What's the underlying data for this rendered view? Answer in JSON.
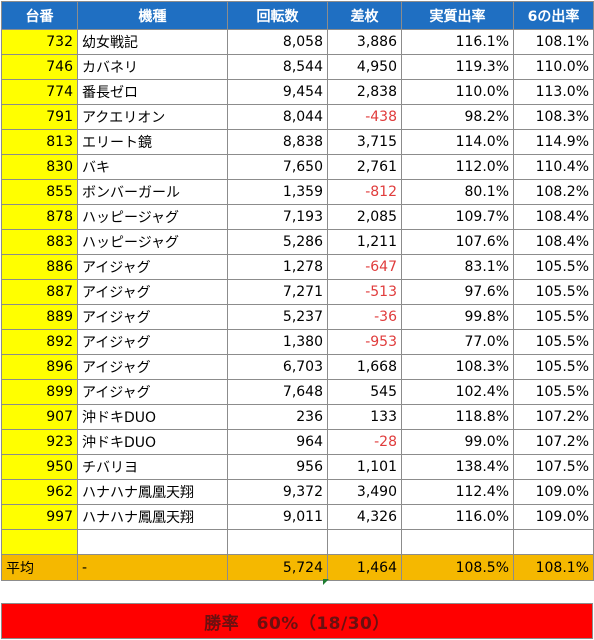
{
  "headers": [
    "台番",
    "機種",
    "回転数",
    "差枚",
    "実質出率",
    "6の出率"
  ],
  "rows": [
    {
      "id": "732",
      "name": "幼女戦記",
      "spins": "8,058",
      "diff": "3,886",
      "rate": "116.1%",
      "rate6": "108.1%",
      "neg": false
    },
    {
      "id": "746",
      "name": "カバネリ",
      "spins": "8,544",
      "diff": "4,950",
      "rate": "119.3%",
      "rate6": "110.0%",
      "neg": false
    },
    {
      "id": "774",
      "name": "番長ゼロ",
      "spins": "9,454",
      "diff": "2,838",
      "rate": "110.0%",
      "rate6": "113.0%",
      "neg": false
    },
    {
      "id": "791",
      "name": "アクエリオン",
      "spins": "8,044",
      "diff": "-438",
      "rate": "98.2%",
      "rate6": "108.3%",
      "neg": true
    },
    {
      "id": "813",
      "name": "エリート鏡",
      "spins": "8,838",
      "diff": "3,715",
      "rate": "114.0%",
      "rate6": "114.9%",
      "neg": false
    },
    {
      "id": "830",
      "name": "バキ",
      "spins": "7,650",
      "diff": "2,761",
      "rate": "112.0%",
      "rate6": "110.4%",
      "neg": false
    },
    {
      "id": "855",
      "name": "ボンバーガール",
      "spins": "1,359",
      "diff": "-812",
      "rate": "80.1%",
      "rate6": "108.2%",
      "neg": true
    },
    {
      "id": "878",
      "name": "ハッピージャグ",
      "spins": "7,193",
      "diff": "2,085",
      "rate": "109.7%",
      "rate6": "108.4%",
      "neg": false
    },
    {
      "id": "883",
      "name": "ハッピージャグ",
      "spins": "5,286",
      "diff": "1,211",
      "rate": "107.6%",
      "rate6": "108.4%",
      "neg": false
    },
    {
      "id": "886",
      "name": "アイジャグ",
      "spins": "1,278",
      "diff": "-647",
      "rate": "83.1%",
      "rate6": "105.5%",
      "neg": true
    },
    {
      "id": "887",
      "name": "アイジャグ",
      "spins": "7,271",
      "diff": "-513",
      "rate": "97.6%",
      "rate6": "105.5%",
      "neg": true
    },
    {
      "id": "889",
      "name": "アイジャグ",
      "spins": "5,237",
      "diff": "-36",
      "rate": "99.8%",
      "rate6": "105.5%",
      "neg": true
    },
    {
      "id": "892",
      "name": "アイジャグ",
      "spins": "1,380",
      "diff": "-953",
      "rate": "77.0%",
      "rate6": "105.5%",
      "neg": true
    },
    {
      "id": "896",
      "name": "アイジャグ",
      "spins": "6,703",
      "diff": "1,668",
      "rate": "108.3%",
      "rate6": "105.5%",
      "neg": false
    },
    {
      "id": "899",
      "name": "アイジャグ",
      "spins": "7,648",
      "diff": "545",
      "rate": "102.4%",
      "rate6": "105.5%",
      "neg": false
    },
    {
      "id": "907",
      "name": "沖ドキDUO",
      "spins": "236",
      "diff": "133",
      "rate": "118.8%",
      "rate6": "107.2%",
      "neg": false
    },
    {
      "id": "923",
      "name": "沖ドキDUO",
      "spins": "964",
      "diff": "-28",
      "rate": "99.0%",
      "rate6": "107.2%",
      "neg": true
    },
    {
      "id": "950",
      "name": "チバリヨ",
      "spins": "956",
      "diff": "1,101",
      "rate": "138.4%",
      "rate6": "107.5%",
      "neg": false
    },
    {
      "id": "962",
      "name": "ハナハナ鳳凰天翔",
      "spins": "9,372",
      "diff": "3,490",
      "rate": "112.4%",
      "rate6": "109.0%",
      "neg": false
    },
    {
      "id": "997",
      "name": "ハナハナ鳳凰天翔",
      "spins": "9,011",
      "diff": "4,326",
      "rate": "116.0%",
      "rate6": "109.0%",
      "neg": false
    }
  ],
  "average": {
    "label": "平均",
    "name": "-",
    "spins": "5,724",
    "diff": "1,464",
    "rate": "108.5%",
    "rate6": "108.1%"
  },
  "win_rate": "勝率　60%（18/30）",
  "colors": {
    "header": "#1f6fc2",
    "id_cell": "#ffff00",
    "average_row": "#f5b800",
    "win_bar": "#ff0000",
    "negative": "#e03c3c"
  }
}
